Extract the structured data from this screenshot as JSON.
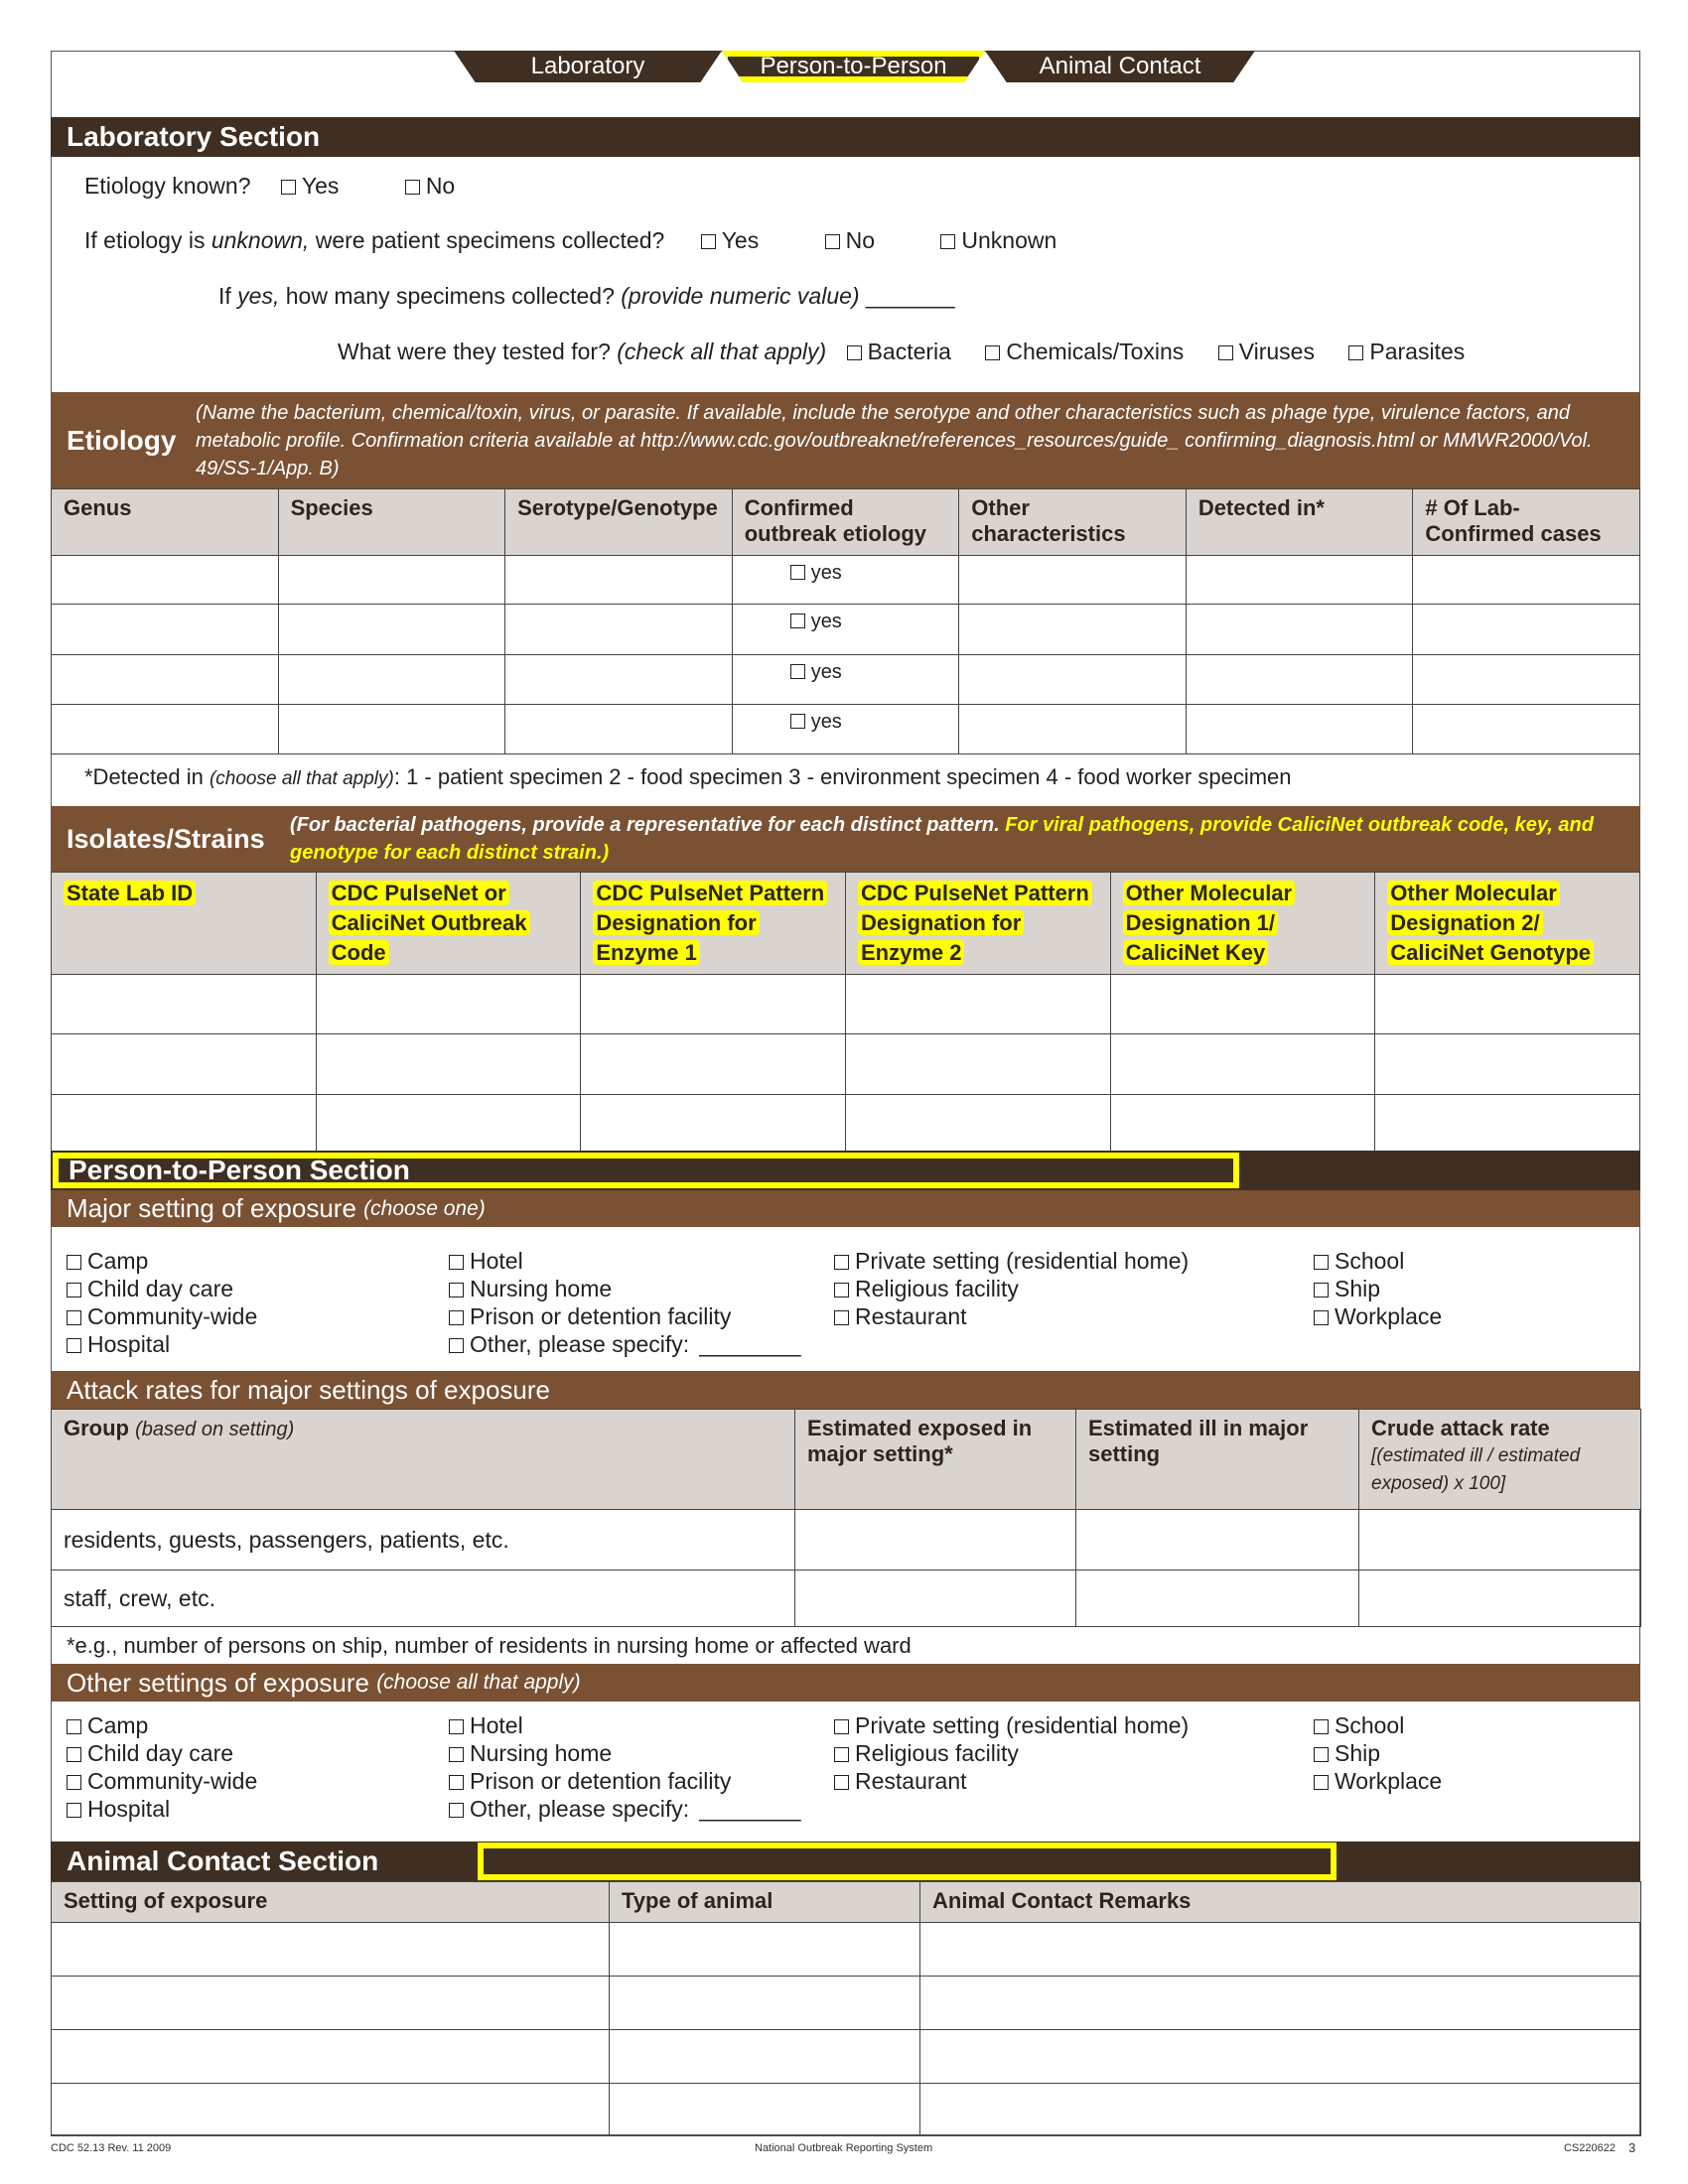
{
  "tabs": [
    "Laboratory",
    "Person-to-Person",
    "Animal Contact"
  ],
  "lab": {
    "title": "Laboratory Section",
    "q1": "Etiology known?",
    "yes": "Yes",
    "no": "No",
    "unknown": "Unknown",
    "q2a": "If etiology is ",
    "q2i": "unknown,",
    "q2b": " were patient specimens collected?",
    "q3a": "If ",
    "q3i": "yes,",
    "q3b": " how many specimens collected? ",
    "q3c": "(provide numeric value)",
    "q3blank": "_______",
    "q4a": "What were they tested for? ",
    "q4i": "(check all that apply)",
    "tested": [
      "Bacteria",
      "Chemicals/Toxins",
      "Viruses",
      "Parasites"
    ]
  },
  "etiology": {
    "title": "Etiology",
    "note": "(Name the bacterium, chemical/toxin, virus, or parasite. If available, include the serotype and other characteristics such as phage type, virulence factors, and metabolic profile. Confirmation criteria available at http://www.cdc.gov/outbreaknet/references_resources/guide_ confirming_diagnosis.html or MMWR2000/Vol. 49/SS-1/App. B)",
    "columns": [
      "Genus",
      "Species",
      "Serotype/Genotype",
      "Confirmed outbreak etiology",
      "Other characteristics",
      "Detected in*",
      "# Of Lab-Confirmed cases"
    ],
    "yes_label": "yes",
    "footnote_a": "*Detected in ",
    "footnote_i": "(choose all that apply)",
    ":": "",
    "footnote_b": ":  1 - patient specimen  2 - food specimen  3 - environment specimen  4 - food worker specimen"
  },
  "isolates": {
    "title": "Isolates/Strains",
    "note_a": "(For bacterial pathogens, provide a representative for each distinct pattern. ",
    "note_b": "For viral pathogens, provide CaliciNet outbreak code, key, and genotype for each distinct strain.)",
    "columns": [
      "State Lab ID",
      "CDC PulseNet or CaliciNet Outbreak Code",
      "CDC PulseNet Pattern Designation for Enzyme 1",
      "CDC PulseNet Pattern Designation for Enzyme 2",
      "Other Molecular Designation 1/ CaliciNet Key",
      "Other Molecular Designation 2/ CaliciNet Genotype"
    ]
  },
  "p2p": {
    "title": "Person-to-Person Section",
    "major_title": "Major setting of exposure",
    "major_hint": "(choose one)",
    "settings": [
      [
        "Camp",
        "Child day care",
        "Community-wide",
        "Hospital"
      ],
      [
        "Hotel",
        "Nursing home",
        "Prison or detention facility",
        "Other, please specify:"
      ],
      [
        "Private setting (residential home)",
        "Religious facility",
        "Restaurant"
      ],
      [
        "School",
        "Ship",
        "Workplace"
      ]
    ],
    "specify_blank": "________",
    "attack_title": "Attack rates for major settings of exposure",
    "attack_cols": {
      "group": "Group",
      "group_hint": "(based on setting)",
      "exposed": "Estimated exposed in major setting*",
      "ill": "Estimated ill in major setting",
      "crude": "Crude attack rate",
      "crude_hint": "[(estimated ill / estimated exposed) x 100]"
    },
    "attack_rows": [
      "residents, guests, passengers, patients, etc.",
      "staff, crew, etc."
    ],
    "attack_footnote": "*e.g., number of persons on ship, number of residents in nursing home or affected ward",
    "other_title": "Other settings of exposure",
    "other_hint": "(choose all that apply)"
  },
  "animal": {
    "title": "Animal Contact Section",
    "columns": [
      "Setting of exposure",
      "Type of animal",
      "Animal Contact Remarks"
    ]
  },
  "footer": {
    "left": "CDC 52.13  Rev. 11 2009",
    "center": "National Outbreak Reporting System",
    "right": "CS220622",
    "page": "3"
  },
  "colors": {
    "dark_brown": "#3f2f22",
    "medium_brown": "#7a5133",
    "header_gray": "#d9d4cf",
    "highlight": "#ffff00"
  }
}
